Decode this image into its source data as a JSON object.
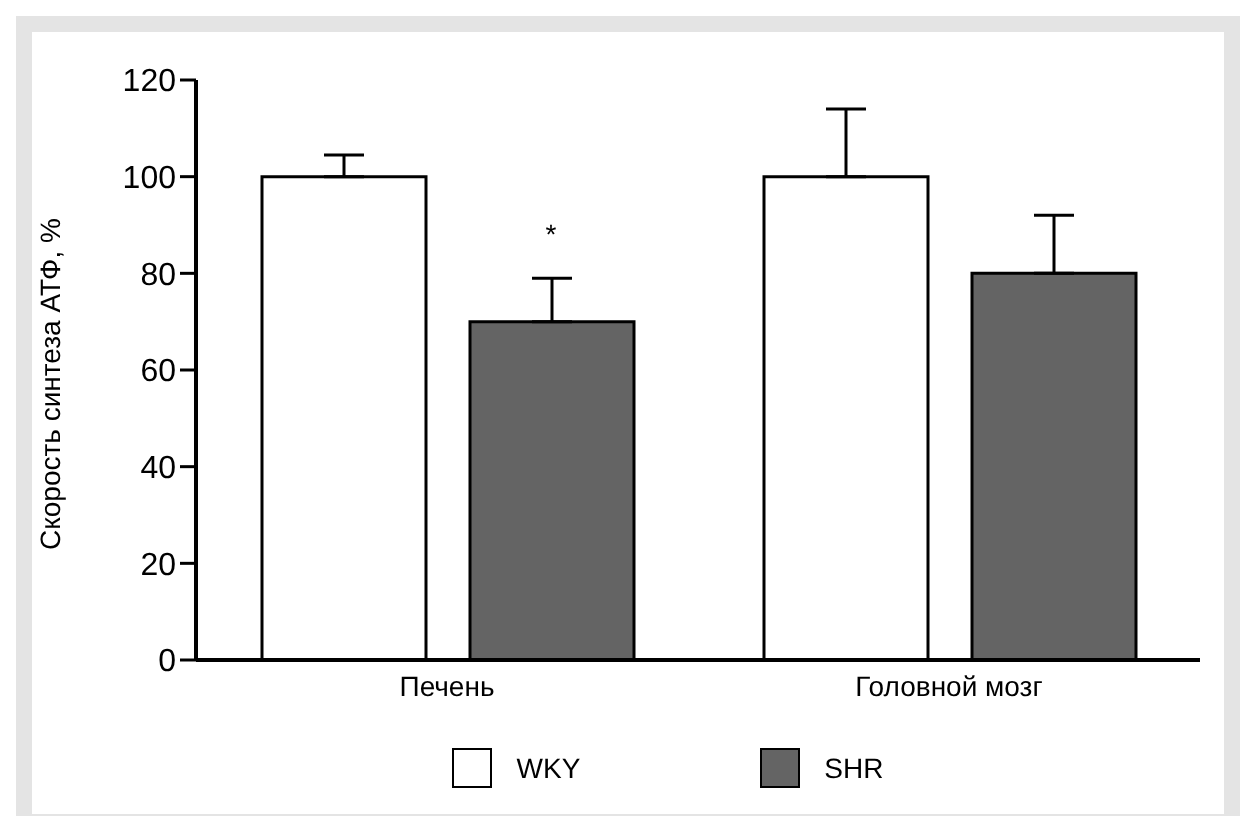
{
  "chart_data": {
    "type": "bar",
    "ylabel": "Скорость синтеза АТФ, %",
    "categories": [
      "Печень",
      "Головной мозг"
    ],
    "series": [
      {
        "name": "WKY",
        "color": "#ffffff",
        "values": [
          100,
          100
        ],
        "errors": [
          [
            100,
            104.5
          ],
          [
            100,
            114
          ]
        ]
      },
      {
        "name": "SHR",
        "color": "#646464",
        "values": [
          70,
          80
        ],
        "errors": [
          [
            70,
            79
          ],
          [
            80,
            92
          ]
        ]
      }
    ],
    "ylim": [
      0,
      120
    ],
    "yticks": [
      0,
      20,
      40,
      60,
      80,
      100,
      120
    ],
    "grid": false,
    "legend": "bottom",
    "annotations": [
      "*"
    ]
  }
}
